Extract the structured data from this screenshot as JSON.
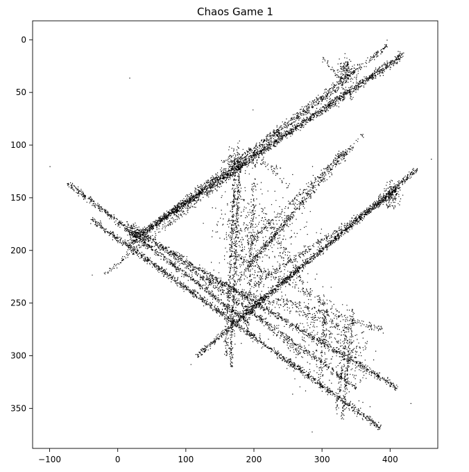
{
  "chart_data": {
    "type": "scatter",
    "title": "Chaos Game 1",
    "xlabel": "",
    "ylabel": "",
    "xlim": [
      -125,
      470
    ],
    "ylim": [
      -18,
      388
    ],
    "y_inverted": true,
    "grid": false,
    "legend": "none",
    "marker": {
      "color": "#000000",
      "shape": "dot"
    },
    "x_ticks": [
      {
        "value": -100,
        "label": "−100"
      },
      {
        "value": 0,
        "label": "0"
      },
      {
        "value": 100,
        "label": "100"
      },
      {
        "value": 200,
        "label": "200"
      },
      {
        "value": 300,
        "label": "300"
      },
      {
        "value": 400,
        "label": "400"
      }
    ],
    "y_ticks": [
      {
        "value": 0,
        "label": "0"
      },
      {
        "value": 50,
        "label": "50"
      },
      {
        "value": 100,
        "label": "100"
      },
      {
        "value": 150,
        "label": "150"
      },
      {
        "value": 200,
        "label": "200"
      },
      {
        "value": 250,
        "label": "250"
      },
      {
        "value": 300,
        "label": "300"
      },
      {
        "value": 350,
        "label": "350"
      }
    ],
    "strokes": [
      {
        "from": [
          30,
          185
        ],
        "to": [
          420,
          12
        ],
        "density": 26
      },
      {
        "from": [
          45,
          180
        ],
        "to": [
          415,
          17
        ],
        "density": 20
      },
      {
        "from": [
          60,
          170
        ],
        "to": [
          395,
          6
        ],
        "density": 14
      },
      {
        "from": [
          20,
          192
        ],
        "to": [
          330,
          42
        ],
        "density": 18
      },
      {
        "from": [
          -20,
          222
        ],
        "to": [
          170,
          127
        ],
        "density": 10
      },
      {
        "from": [
          -75,
          135
        ],
        "to": [
          190,
          268
        ],
        "density": 24
      },
      {
        "from": [
          -40,
          170
        ],
        "to": [
          385,
          368
        ],
        "density": 28
      },
      {
        "from": [
          10,
          175
        ],
        "to": [
          410,
          330
        ],
        "density": 22
      },
      {
        "from": [
          60,
          195
        ],
        "to": [
          350,
          330
        ],
        "density": 16
      },
      {
        "from": [
          120,
          225
        ],
        "to": [
          340,
          275
        ],
        "density": 10
      },
      {
        "from": [
          115,
          300
        ],
        "to": [
          440,
          122
        ],
        "density": 24
      },
      {
        "from": [
          175,
          265
        ],
        "to": [
          415,
          138
        ],
        "density": 22
      },
      {
        "from": [
          200,
          232
        ],
        "to": [
          395,
          150
        ],
        "density": 14
      },
      {
        "from": [
          190,
          215
        ],
        "to": [
          345,
          100
        ],
        "density": 14
      },
      {
        "from": [
          160,
          240
        ],
        "to": [
          330,
          105
        ],
        "density": 12
      },
      {
        "from": [
          180,
          200
        ],
        "to": [
          360,
          90
        ],
        "density": 9
      },
      {
        "from": [
          165,
          310
        ],
        "to": [
          178,
          120
        ],
        "density": 18
      },
      {
        "from": [
          158,
          300
        ],
        "to": [
          172,
          125
        ],
        "density": 14
      },
      {
        "from": [
          190,
          280
        ],
        "to": [
          200,
          130
        ],
        "density": 10
      },
      {
        "from": [
          295,
          330
        ],
        "to": [
          305,
          255
        ],
        "density": 10
      },
      {
        "from": [
          330,
          360
        ],
        "to": [
          345,
          255
        ],
        "density": 14
      },
      {
        "from": [
          320,
          355
        ],
        "to": [
          338,
          270
        ],
        "density": 10
      },
      {
        "from": [
          300,
          15
        ],
        "to": [
          345,
          55
        ],
        "density": 8
      },
      {
        "from": [
          200,
          105
        ],
        "to": [
          250,
          140
        ],
        "density": 6
      },
      {
        "from": [
          175,
          205
        ],
        "to": [
          305,
          250
        ],
        "density": 10
      },
      {
        "from": [
          230,
          245
        ],
        "to": [
          390,
          275
        ],
        "density": 10
      },
      {
        "from": [
          150,
          115
        ],
        "to": [
          240,
          120
        ],
        "density": 6
      },
      {
        "from": [
          210,
          160
        ],
        "to": [
          280,
          240
        ],
        "density": 8
      },
      {
        "from": [
          180,
          250
        ],
        "to": [
          270,
          300
        ],
        "density": 8
      }
    ],
    "clusters": [
      {
        "center": [
          335,
          30
        ],
        "spread": 10,
        "count": 160
      },
      {
        "center": [
          400,
          148
        ],
        "spread": 10,
        "count": 140
      },
      {
        "center": [
          25,
          185
        ],
        "spread": 9,
        "count": 110
      },
      {
        "center": [
          175,
          115
        ],
        "spread": 12,
        "count": 90
      },
      {
        "center": [
          215,
          200
        ],
        "spread": 55,
        "count": 420
      },
      {
        "center": [
          300,
          280
        ],
        "spread": 35,
        "count": 260
      },
      {
        "center": [
          340,
          300
        ],
        "spread": 25,
        "count": 160
      },
      {
        "center": [
          180,
          180
        ],
        "spread": 30,
        "count": 160
      }
    ],
    "outliers": [
      [
        -100,
        120
      ],
      [
        17,
        36
      ],
      [
        460,
        113
      ],
      [
        395,
        0
      ],
      [
        285,
        372
      ],
      [
        107,
        308
      ],
      [
        -38,
        223
      ],
      [
        430,
        345
      ],
      [
        370,
        348
      ]
    ]
  }
}
